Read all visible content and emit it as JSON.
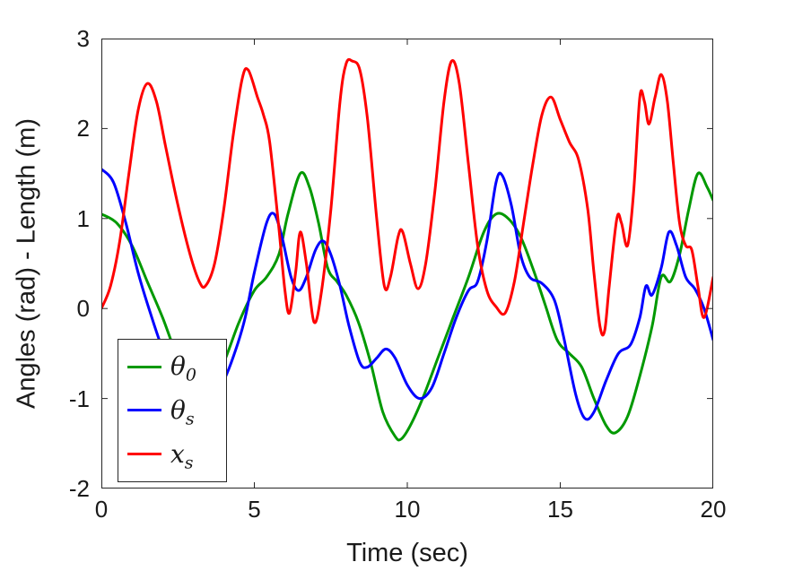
{
  "figure": {
    "background": "#ffffff",
    "axis_color": "#262626",
    "xlabel": "Time (sec)",
    "ylabel": "Angles (rad) - Length (m)",
    "x_ticks": [
      "0",
      "5",
      "10",
      "15",
      "20"
    ],
    "y_ticks": [
      "-2",
      "-1",
      "0",
      "1",
      "2",
      "3"
    ],
    "xlim": [
      0,
      20
    ],
    "ylim": [
      -2,
      3
    ]
  },
  "legend": {
    "entries": [
      {
        "base": "θ",
        "sub": "0",
        "color": "#009900"
      },
      {
        "base": "θ",
        "sub": "s",
        "color": "#0000ff"
      },
      {
        "base": "x",
        "sub": "s",
        "color": "#ff0000"
      }
    ]
  },
  "chart_data": {
    "type": "line",
    "title": "",
    "xlabel": "Time (sec)",
    "ylabel": "Angles (rad) - Length (m)",
    "xlim": [
      0,
      20
    ],
    "ylim": [
      -2,
      3
    ],
    "grid": false,
    "legend_position": "lower-left",
    "x_ticks": [
      0,
      5,
      10,
      15,
      20
    ],
    "y_ticks": [
      -2,
      -1,
      0,
      1,
      2,
      3
    ],
    "series": [
      {
        "name": "theta_0",
        "color": "#009900",
        "points": [
          [
            0,
            1.05
          ],
          [
            0.5,
            0.95
          ],
          [
            1,
            0.7
          ],
          [
            1.5,
            0.3
          ],
          [
            2,
            -0.1
          ],
          [
            2.5,
            -0.55
          ],
          [
            3,
            -0.85
          ],
          [
            3.5,
            -0.9
          ],
          [
            4,
            -0.6
          ],
          [
            4.5,
            -0.15
          ],
          [
            5,
            0.2
          ],
          [
            5.4,
            0.35
          ],
          [
            5.8,
            0.6
          ],
          [
            6.1,
            1.05
          ],
          [
            6.5,
            1.5
          ],
          [
            6.8,
            1.35
          ],
          [
            7.1,
            0.95
          ],
          [
            7.4,
            0.45
          ],
          [
            7.7,
            0.3
          ],
          [
            8,
            0.15
          ],
          [
            8.4,
            -0.15
          ],
          [
            8.8,
            -0.6
          ],
          [
            9.2,
            -1.15
          ],
          [
            9.6,
            -1.42
          ],
          [
            9.8,
            -1.45
          ],
          [
            10.1,
            -1.3
          ],
          [
            10.5,
            -1.0
          ],
          [
            11,
            -0.55
          ],
          [
            11.5,
            -0.1
          ],
          [
            12,
            0.35
          ],
          [
            12.5,
            0.85
          ],
          [
            12.9,
            1.05
          ],
          [
            13.3,
            1.0
          ],
          [
            13.7,
            0.8
          ],
          [
            14.1,
            0.45
          ],
          [
            14.5,
            0.05
          ],
          [
            14.9,
            -0.35
          ],
          [
            15.3,
            -0.5
          ],
          [
            15.7,
            -0.65
          ],
          [
            16.1,
            -1.0
          ],
          [
            16.5,
            -1.3
          ],
          [
            16.8,
            -1.38
          ],
          [
            17.2,
            -1.2
          ],
          [
            17.6,
            -0.75
          ],
          [
            18,
            -0.2
          ],
          [
            18.3,
            0.35
          ],
          [
            18.6,
            0.3
          ],
          [
            18.9,
            0.6
          ],
          [
            19.2,
            1.1
          ],
          [
            19.5,
            1.5
          ],
          [
            19.8,
            1.35
          ],
          [
            20,
            1.2
          ]
        ]
      },
      {
        "name": "theta_s",
        "color": "#0000ff",
        "points": [
          [
            0,
            1.55
          ],
          [
            0.4,
            1.4
          ],
          [
            0.8,
            0.95
          ],
          [
            1.2,
            0.4
          ],
          [
            1.6,
            -0.05
          ],
          [
            2,
            -0.45
          ],
          [
            2.5,
            -0.85
          ],
          [
            3,
            -1.1
          ],
          [
            3.5,
            -1.05
          ],
          [
            4,
            -0.8
          ],
          [
            4.4,
            -0.45
          ],
          [
            4.7,
            -0.1
          ],
          [
            5,
            0.4
          ],
          [
            5.4,
            0.95
          ],
          [
            5.65,
            1.05
          ],
          [
            5.9,
            0.8
          ],
          [
            6.2,
            0.35
          ],
          [
            6.45,
            0.2
          ],
          [
            6.7,
            0.35
          ],
          [
            7,
            0.65
          ],
          [
            7.25,
            0.75
          ],
          [
            7.5,
            0.6
          ],
          [
            7.8,
            0.25
          ],
          [
            8.1,
            -0.2
          ],
          [
            8.45,
            -0.6
          ],
          [
            8.7,
            -0.65
          ],
          [
            9,
            -0.55
          ],
          [
            9.3,
            -0.45
          ],
          [
            9.6,
            -0.55
          ],
          [
            10,
            -0.85
          ],
          [
            10.4,
            -1.0
          ],
          [
            10.8,
            -0.88
          ],
          [
            11.2,
            -0.5
          ],
          [
            11.6,
            -0.1
          ],
          [
            12,
            0.2
          ],
          [
            12.3,
            0.3
          ],
          [
            12.6,
            0.75
          ],
          [
            12.9,
            1.4
          ],
          [
            13.1,
            1.48
          ],
          [
            13.4,
            1.15
          ],
          [
            13.7,
            0.6
          ],
          [
            14,
            0.35
          ],
          [
            14.4,
            0.28
          ],
          [
            14.8,
            0.1
          ],
          [
            15.1,
            -0.3
          ],
          [
            15.5,
            -0.95
          ],
          [
            15.8,
            -1.22
          ],
          [
            16.1,
            -1.15
          ],
          [
            16.5,
            -0.8
          ],
          [
            16.9,
            -0.5
          ],
          [
            17.3,
            -0.4
          ],
          [
            17.6,
            -0.1
          ],
          [
            17.8,
            0.25
          ],
          [
            18,
            0.15
          ],
          [
            18.3,
            0.45
          ],
          [
            18.55,
            0.85
          ],
          [
            18.8,
            0.7
          ],
          [
            19.1,
            0.35
          ],
          [
            19.4,
            0.22
          ],
          [
            19.7,
            0.0
          ],
          [
            20,
            -0.35
          ]
        ]
      },
      {
        "name": "x_s",
        "color": "#ff0000",
        "points": [
          [
            0,
            0.0
          ],
          [
            0.3,
            0.25
          ],
          [
            0.6,
            0.75
          ],
          [
            0.9,
            1.5
          ],
          [
            1.2,
            2.2
          ],
          [
            1.5,
            2.5
          ],
          [
            1.8,
            2.3
          ],
          [
            2.1,
            1.8
          ],
          [
            2.5,
            1.15
          ],
          [
            2.9,
            0.6
          ],
          [
            3.2,
            0.3
          ],
          [
            3.4,
            0.25
          ],
          [
            3.7,
            0.5
          ],
          [
            4,
            1.1
          ],
          [
            4.3,
            1.9
          ],
          [
            4.6,
            2.55
          ],
          [
            4.8,
            2.65
          ],
          [
            5.1,
            2.35
          ],
          [
            5.3,
            2.15
          ],
          [
            5.5,
            1.85
          ],
          [
            5.8,
            0.9
          ],
          [
            6,
            0.2
          ],
          [
            6.15,
            -0.05
          ],
          [
            6.35,
            0.4
          ],
          [
            6.5,
            0.85
          ],
          [
            6.7,
            0.5
          ],
          [
            6.95,
            -0.15
          ],
          [
            7.2,
            0.2
          ],
          [
            7.5,
            1.1
          ],
          [
            7.8,
            2.3
          ],
          [
            8,
            2.72
          ],
          [
            8.2,
            2.75
          ],
          [
            8.45,
            2.65
          ],
          [
            8.7,
            2.1
          ],
          [
            9,
            1.0
          ],
          [
            9.25,
            0.25
          ],
          [
            9.45,
            0.35
          ],
          [
            9.7,
            0.8
          ],
          [
            9.85,
            0.85
          ],
          [
            10.1,
            0.5
          ],
          [
            10.35,
            0.22
          ],
          [
            10.6,
            0.5
          ],
          [
            10.9,
            1.3
          ],
          [
            11.2,
            2.3
          ],
          [
            11.45,
            2.75
          ],
          [
            11.7,
            2.5
          ],
          [
            12,
            1.6
          ],
          [
            12.3,
            0.7
          ],
          [
            12.6,
            0.2
          ],
          [
            12.9,
            0.02
          ],
          [
            13.2,
            -0.05
          ],
          [
            13.5,
            0.3
          ],
          [
            13.8,
            0.95
          ],
          [
            14.1,
            1.6
          ],
          [
            14.4,
            2.15
          ],
          [
            14.7,
            2.35
          ],
          [
            15,
            2.1
          ],
          [
            15.3,
            1.85
          ],
          [
            15.6,
            1.65
          ],
          [
            15.9,
            1.1
          ],
          [
            16.1,
            0.4
          ],
          [
            16.3,
            -0.2
          ],
          [
            16.45,
            -0.25
          ],
          [
            16.6,
            0.25
          ],
          [
            16.85,
            1.0
          ],
          [
            17,
            0.95
          ],
          [
            17.2,
            0.7
          ],
          [
            17.4,
            1.3
          ],
          [
            17.6,
            2.35
          ],
          [
            17.75,
            2.3
          ],
          [
            17.9,
            2.05
          ],
          [
            18.1,
            2.35
          ],
          [
            18.3,
            2.6
          ],
          [
            18.5,
            2.3
          ],
          [
            18.7,
            1.6
          ],
          [
            18.9,
            0.95
          ],
          [
            19.1,
            0.7
          ],
          [
            19.3,
            0.65
          ],
          [
            19.5,
            0.25
          ],
          [
            19.7,
            -0.1
          ],
          [
            20,
            0.35
          ]
        ]
      }
    ]
  }
}
